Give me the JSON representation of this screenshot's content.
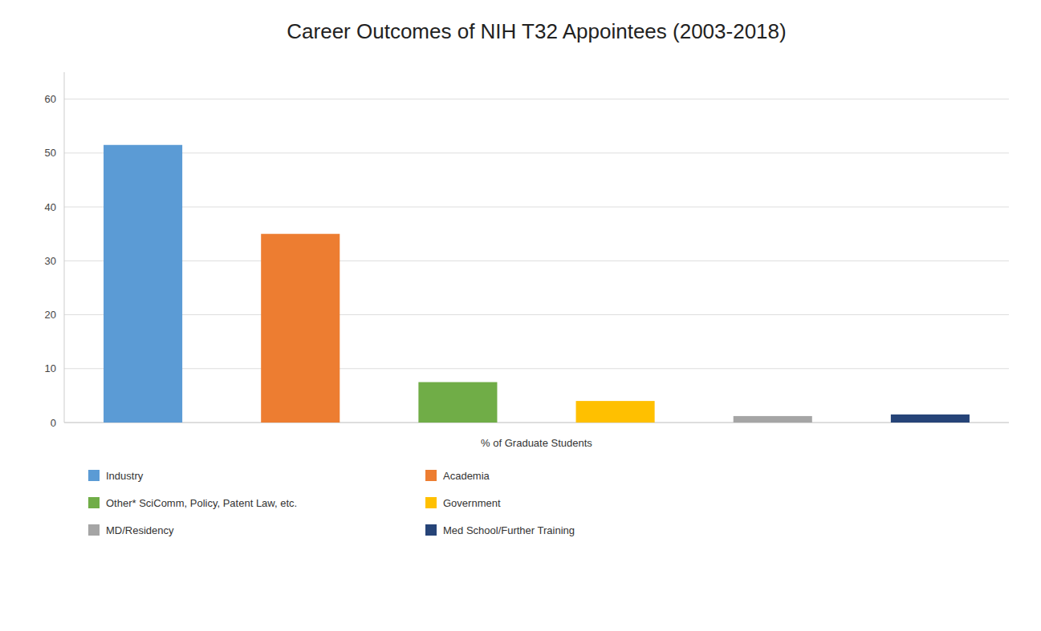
{
  "chart_data": {
    "type": "bar",
    "title": "Career Outcomes of NIH T32 Appointees (2003-2018)",
    "xlabel": "% of Graduate Students",
    "categories": [
      "Industry",
      "Academia",
      "Other* SciComm, Policy, Patent Law, etc.",
      "Government",
      "MD/Residency",
      "Med School/Further Training"
    ],
    "values": [
      51.5,
      35.0,
      7.5,
      4.0,
      1.2,
      1.5
    ],
    "colors": [
      "#5B9BD5",
      "#ED7D31",
      "#70AD47",
      "#FFC000",
      "#A5A5A5",
      "#264478"
    ],
    "ylim": [
      0,
      65
    ],
    "yticks": [
      0,
      10,
      20,
      30,
      40,
      50,
      60
    ],
    "grid": true,
    "legend": "bottom",
    "tick_labels": "y"
  }
}
